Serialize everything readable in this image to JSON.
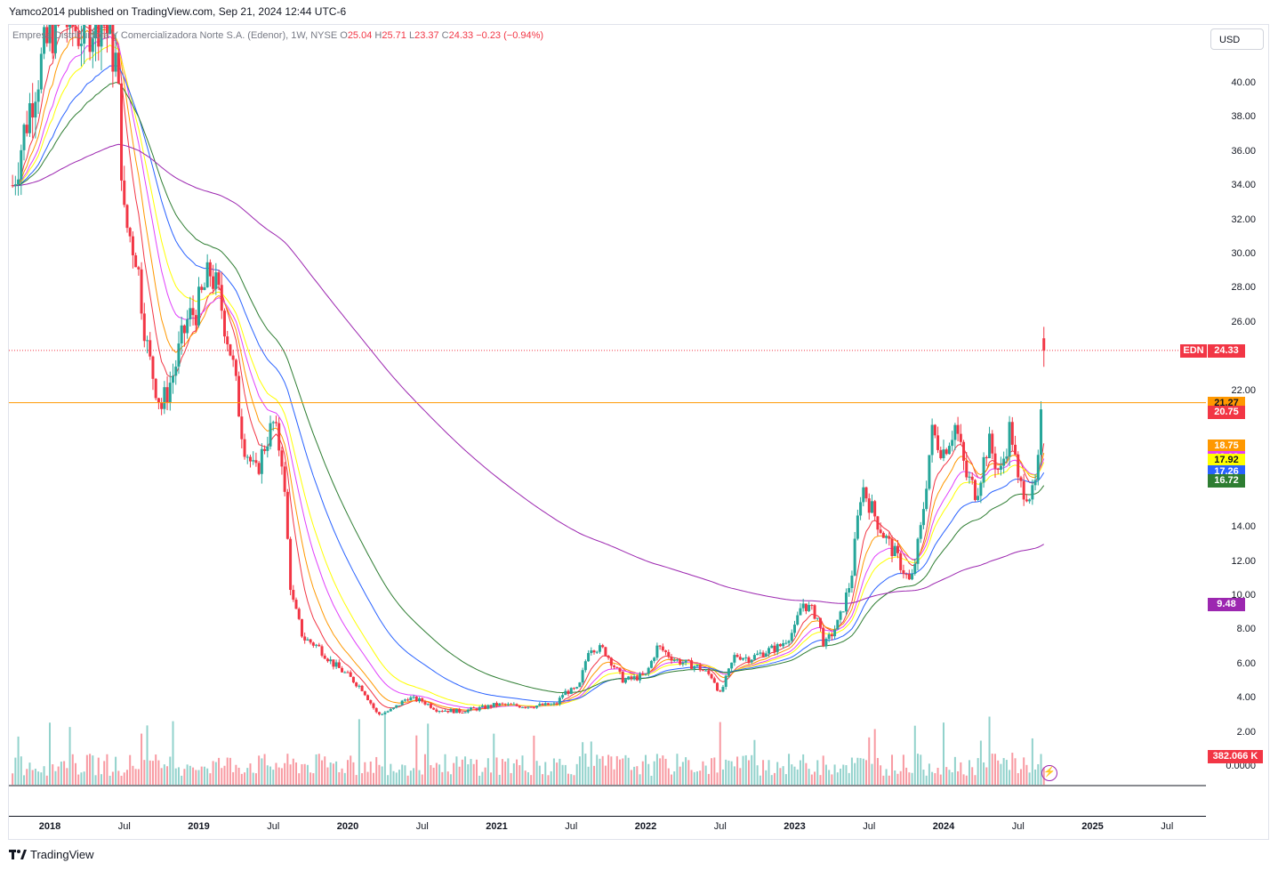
{
  "header": {
    "published_text": "Yamco2014 published on TradingView.com, Sep 21, 2024 12:44 UTC-6"
  },
  "legend": {
    "symbol_title": "Empresa Distribuidora Y Comercializadora Norte S.A. (Edenor), 1W, NYSE",
    "o_label": "O",
    "o_value": "25.04",
    "h_label": "H",
    "h_value": "25.71",
    "l_label": "L",
    "l_value": "23.37",
    "c_label": "C",
    "c_value": "24.33",
    "change": "−0.23 (−0.94%)"
  },
  "currency_button": "USD",
  "footer": {
    "brand": "TradingView"
  },
  "price_tag": {
    "symbol": "EDN",
    "value": "24.33"
  },
  "chart_data": {
    "type": "candlestick",
    "symbol": "EDN",
    "timeframe": "1W",
    "exchange": "NYSE",
    "currency": "USD",
    "y_range": [
      0,
      42
    ],
    "y_ticks": [
      "40.00",
      "38.00",
      "36.00",
      "34.00",
      "32.00",
      "30.00",
      "28.00",
      "26.00",
      "22.00",
      "14.00",
      "12.00",
      "10.00",
      "8.00",
      "6.00",
      "4.00",
      "2.00",
      "0.0000"
    ],
    "x_ticks": [
      {
        "label": "2018",
        "t": 2018.0,
        "year": true
      },
      {
        "label": "Jul",
        "t": 2018.5,
        "year": false
      },
      {
        "label": "2019",
        "t": 2019.0,
        "year": true
      },
      {
        "label": "Jul",
        "t": 2019.5,
        "year": false
      },
      {
        "label": "2020",
        "t": 2020.0,
        "year": true
      },
      {
        "label": "Jul",
        "t": 2020.5,
        "year": false
      },
      {
        "label": "2021",
        "t": 2021.0,
        "year": true
      },
      {
        "label": "Jul",
        "t": 2021.5,
        "year": false
      },
      {
        "label": "2022",
        "t": 2022.0,
        "year": true
      },
      {
        "label": "Jul",
        "t": 2022.5,
        "year": false
      },
      {
        "label": "2023",
        "t": 2023.0,
        "year": true
      },
      {
        "label": "Jul",
        "t": 2023.5,
        "year": false
      },
      {
        "label": "2024",
        "t": 2024.0,
        "year": true
      },
      {
        "label": "Jul",
        "t": 2024.5,
        "year": false
      },
      {
        "label": "2025",
        "t": 2025.0,
        "year": true
      },
      {
        "label": "Jul",
        "t": 2025.5,
        "year": false
      }
    ],
    "price_path": [
      [
        2017.75,
        34
      ],
      [
        2017.9,
        40
      ],
      [
        2018.05,
        44
      ],
      [
        2018.2,
        43
      ],
      [
        2018.35,
        44
      ],
      [
        2018.45,
        41
      ],
      [
        2018.5,
        32
      ],
      [
        2018.58,
        30
      ],
      [
        2018.66,
        24
      ],
      [
        2018.75,
        21
      ],
      [
        2018.83,
        23
      ],
      [
        2018.92,
        26
      ],
      [
        2019.0,
        27
      ],
      [
        2019.08,
        29
      ],
      [
        2019.15,
        27
      ],
      [
        2019.22,
        24
      ],
      [
        2019.3,
        19
      ],
      [
        2019.38,
        17
      ],
      [
        2019.45,
        19
      ],
      [
        2019.5,
        20
      ],
      [
        2019.56,
        18
      ],
      [
        2019.62,
        10
      ],
      [
        2019.7,
        7.5
      ],
      [
        2019.8,
        7
      ],
      [
        2019.9,
        6
      ],
      [
        2020.0,
        5.3
      ],
      [
        2020.1,
        4.5
      ],
      [
        2020.2,
        3
      ],
      [
        2020.3,
        3.3
      ],
      [
        2020.4,
        4
      ],
      [
        2020.5,
        3.8
      ],
      [
        2020.6,
        3.3
      ],
      [
        2020.75,
        3.2
      ],
      [
        2020.9,
        3.4
      ],
      [
        2021.0,
        3.6
      ],
      [
        2021.2,
        3.5
      ],
      [
        2021.4,
        3.6
      ],
      [
        2021.45,
        4.3
      ],
      [
        2021.55,
        4.5
      ],
      [
        2021.62,
        7
      ],
      [
        2021.72,
        6.8
      ],
      [
        2021.85,
        5
      ],
      [
        2022.0,
        5.3
      ],
      [
        2022.08,
        7
      ],
      [
        2022.2,
        6.2
      ],
      [
        2022.35,
        5.8
      ],
      [
        2022.45,
        5.2
      ],
      [
        2022.5,
        4.2
      ],
      [
        2022.6,
        6.5
      ],
      [
        2022.7,
        6.3
      ],
      [
        2022.8,
        6.7
      ],
      [
        2022.9,
        7
      ],
      [
        2023.0,
        8
      ],
      [
        2023.05,
        9.6
      ],
      [
        2023.15,
        8.8
      ],
      [
        2023.2,
        7
      ],
      [
        2023.3,
        8.5
      ],
      [
        2023.38,
        11
      ],
      [
        2023.45,
        16.5
      ],
      [
        2023.52,
        15
      ],
      [
        2023.6,
        13.5
      ],
      [
        2023.7,
        12
      ],
      [
        2023.78,
        10.6
      ],
      [
        2023.85,
        14
      ],
      [
        2023.92,
        19.5
      ],
      [
        2024.0,
        18.5
      ],
      [
        2024.08,
        20
      ],
      [
        2024.15,
        17
      ],
      [
        2024.22,
        16
      ],
      [
        2024.3,
        19
      ],
      [
        2024.38,
        17
      ],
      [
        2024.45,
        20
      ],
      [
        2024.5,
        16.5
      ],
      [
        2024.6,
        15.8
      ],
      [
        2024.63,
        17
      ],
      [
        2024.66,
        21
      ],
      [
        2024.68,
        24.33
      ]
    ],
    "series": [
      {
        "name": "MA1",
        "color": "#f23645",
        "last": "20.75"
      },
      {
        "name": "MA2",
        "color": "#ff9800",
        "last": "18.75"
      },
      {
        "name": "MA3",
        "color": "#e040fb",
        "last": "18.08"
      },
      {
        "name": "MA4",
        "color": "#ffff00",
        "last": "17.92"
      },
      {
        "name": "MA5",
        "color": "#2962ff",
        "last": "17.26"
      },
      {
        "name": "MA6",
        "color": "#2e7d32",
        "last": "16.72"
      },
      {
        "name": "MA7",
        "color": "#9c27b0",
        "last": "9.48"
      }
    ],
    "horizontal_line": {
      "value": "21.27",
      "color": "#ff9800"
    },
    "last_price": {
      "value": "24.33",
      "color": "#f23645"
    },
    "volume_last": {
      "value": "382.066 K",
      "color": "#f23645"
    },
    "colors": {
      "up": "#26a69a",
      "down": "#f23645"
    }
  }
}
